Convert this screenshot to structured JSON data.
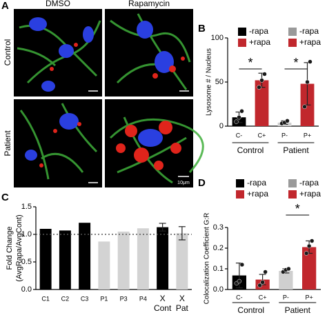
{
  "figure": {
    "panel_labels": [
      "A",
      "B",
      "C",
      "D"
    ],
    "columns": [
      "DMSO",
      "Rapamycin"
    ],
    "rows": [
      "Control",
      "Patient"
    ],
    "scale_bar": "10μm"
  },
  "chart_data": [
    {
      "type": "bar",
      "ylabel": "Lysosome # / Nucleus",
      "categories": [
        "C-",
        "C+",
        "P-",
        "P+"
      ],
      "values": [
        10,
        52,
        4,
        48
      ],
      "errors": [
        6,
        8,
        2,
        24
      ],
      "colors": [
        "#000000",
        "#c1272d",
        "#cfcfcf",
        "#c1272d"
      ],
      "points": [
        [
          5,
          10,
          17
        ],
        [
          44,
          52,
          59
        ],
        [
          3,
          4,
          6
        ],
        [
          22,
          50,
          73
        ]
      ],
      "ylim": [
        0,
        100
      ],
      "yticks": [
        0,
        50,
        100
      ],
      "legend": [
        {
          "name": "-rapa",
          "color": "#000000"
        },
        {
          "name": "+rapa",
          "color": "#c1272d"
        },
        {
          "name": "-rapa",
          "color": "#9a9a9a"
        },
        {
          "name": "+rapa",
          "color": "#c1272d"
        }
      ],
      "groups": [
        "Control",
        "Patient"
      ],
      "significance": [
        "*",
        "*"
      ]
    },
    {
      "type": "bar",
      "ylabel": [
        "Fold Change",
        "(AvgRapa/AvgCont)"
      ],
      "categories": [
        "C1",
        "C2",
        "C3",
        "P1",
        "P3",
        "P4",
        [
          "X",
          "Cont"
        ],
        [
          "X",
          "Pat"
        ]
      ],
      "values": [
        1.1,
        1.07,
        1.21,
        0.87,
        1.05,
        1.11,
        1.13,
        1.02
      ],
      "errors": [
        null,
        null,
        null,
        null,
        null,
        null,
        0.07,
        0.12
      ],
      "colors": [
        "#000000",
        "#000000",
        "#000000",
        "#d3d3d3",
        "#d3d3d3",
        "#d3d3d3",
        "#000000",
        "#d3d3d3"
      ],
      "ylim": [
        0,
        1.5
      ],
      "yticks": [
        {
          "value": 0,
          "label": "0.0"
        },
        0.5,
        {
          "value": 1,
          "label": "1.0"
        },
        1.5
      ],
      "reference_line": 1
    },
    {
      "type": "bar",
      "ylabel": "Colocalization Coefficient G:R",
      "categories": [
        "C-",
        "C+",
        "P-",
        "P+"
      ],
      "values": [
        0.068,
        0.048,
        0.09,
        0.205
      ],
      "errors": [
        0.06,
        0.025,
        0.01,
        0.03
      ],
      "colors": [
        "#000000",
        "#c1272d",
        "#cfcfcf",
        "#c1272d"
      ],
      "points": [
        [
          0.03,
          0.04,
          0.12
        ],
        [
          0.02,
          0.035,
          0.085
        ],
        [
          0.085,
          0.095,
          0.1
        ],
        [
          0.175,
          0.21,
          0.235
        ]
      ],
      "ylim": [
        0,
        0.3
      ],
      "yticks": [
        {
          "value": 0,
          "label": "0.0"
        },
        0.1,
        0.2,
        0.3
      ],
      "legend": [
        {
          "name": "-rapa",
          "color": "#000000"
        },
        {
          "name": "+rapa",
          "color": "#c1272d"
        },
        {
          "name": "-rapa",
          "color": "#9a9a9a"
        },
        {
          "name": "+rapa",
          "color": "#c1272d"
        }
      ],
      "groups": [
        "Control",
        "Patient"
      ],
      "significance": [
        null,
        "*"
      ]
    }
  ]
}
